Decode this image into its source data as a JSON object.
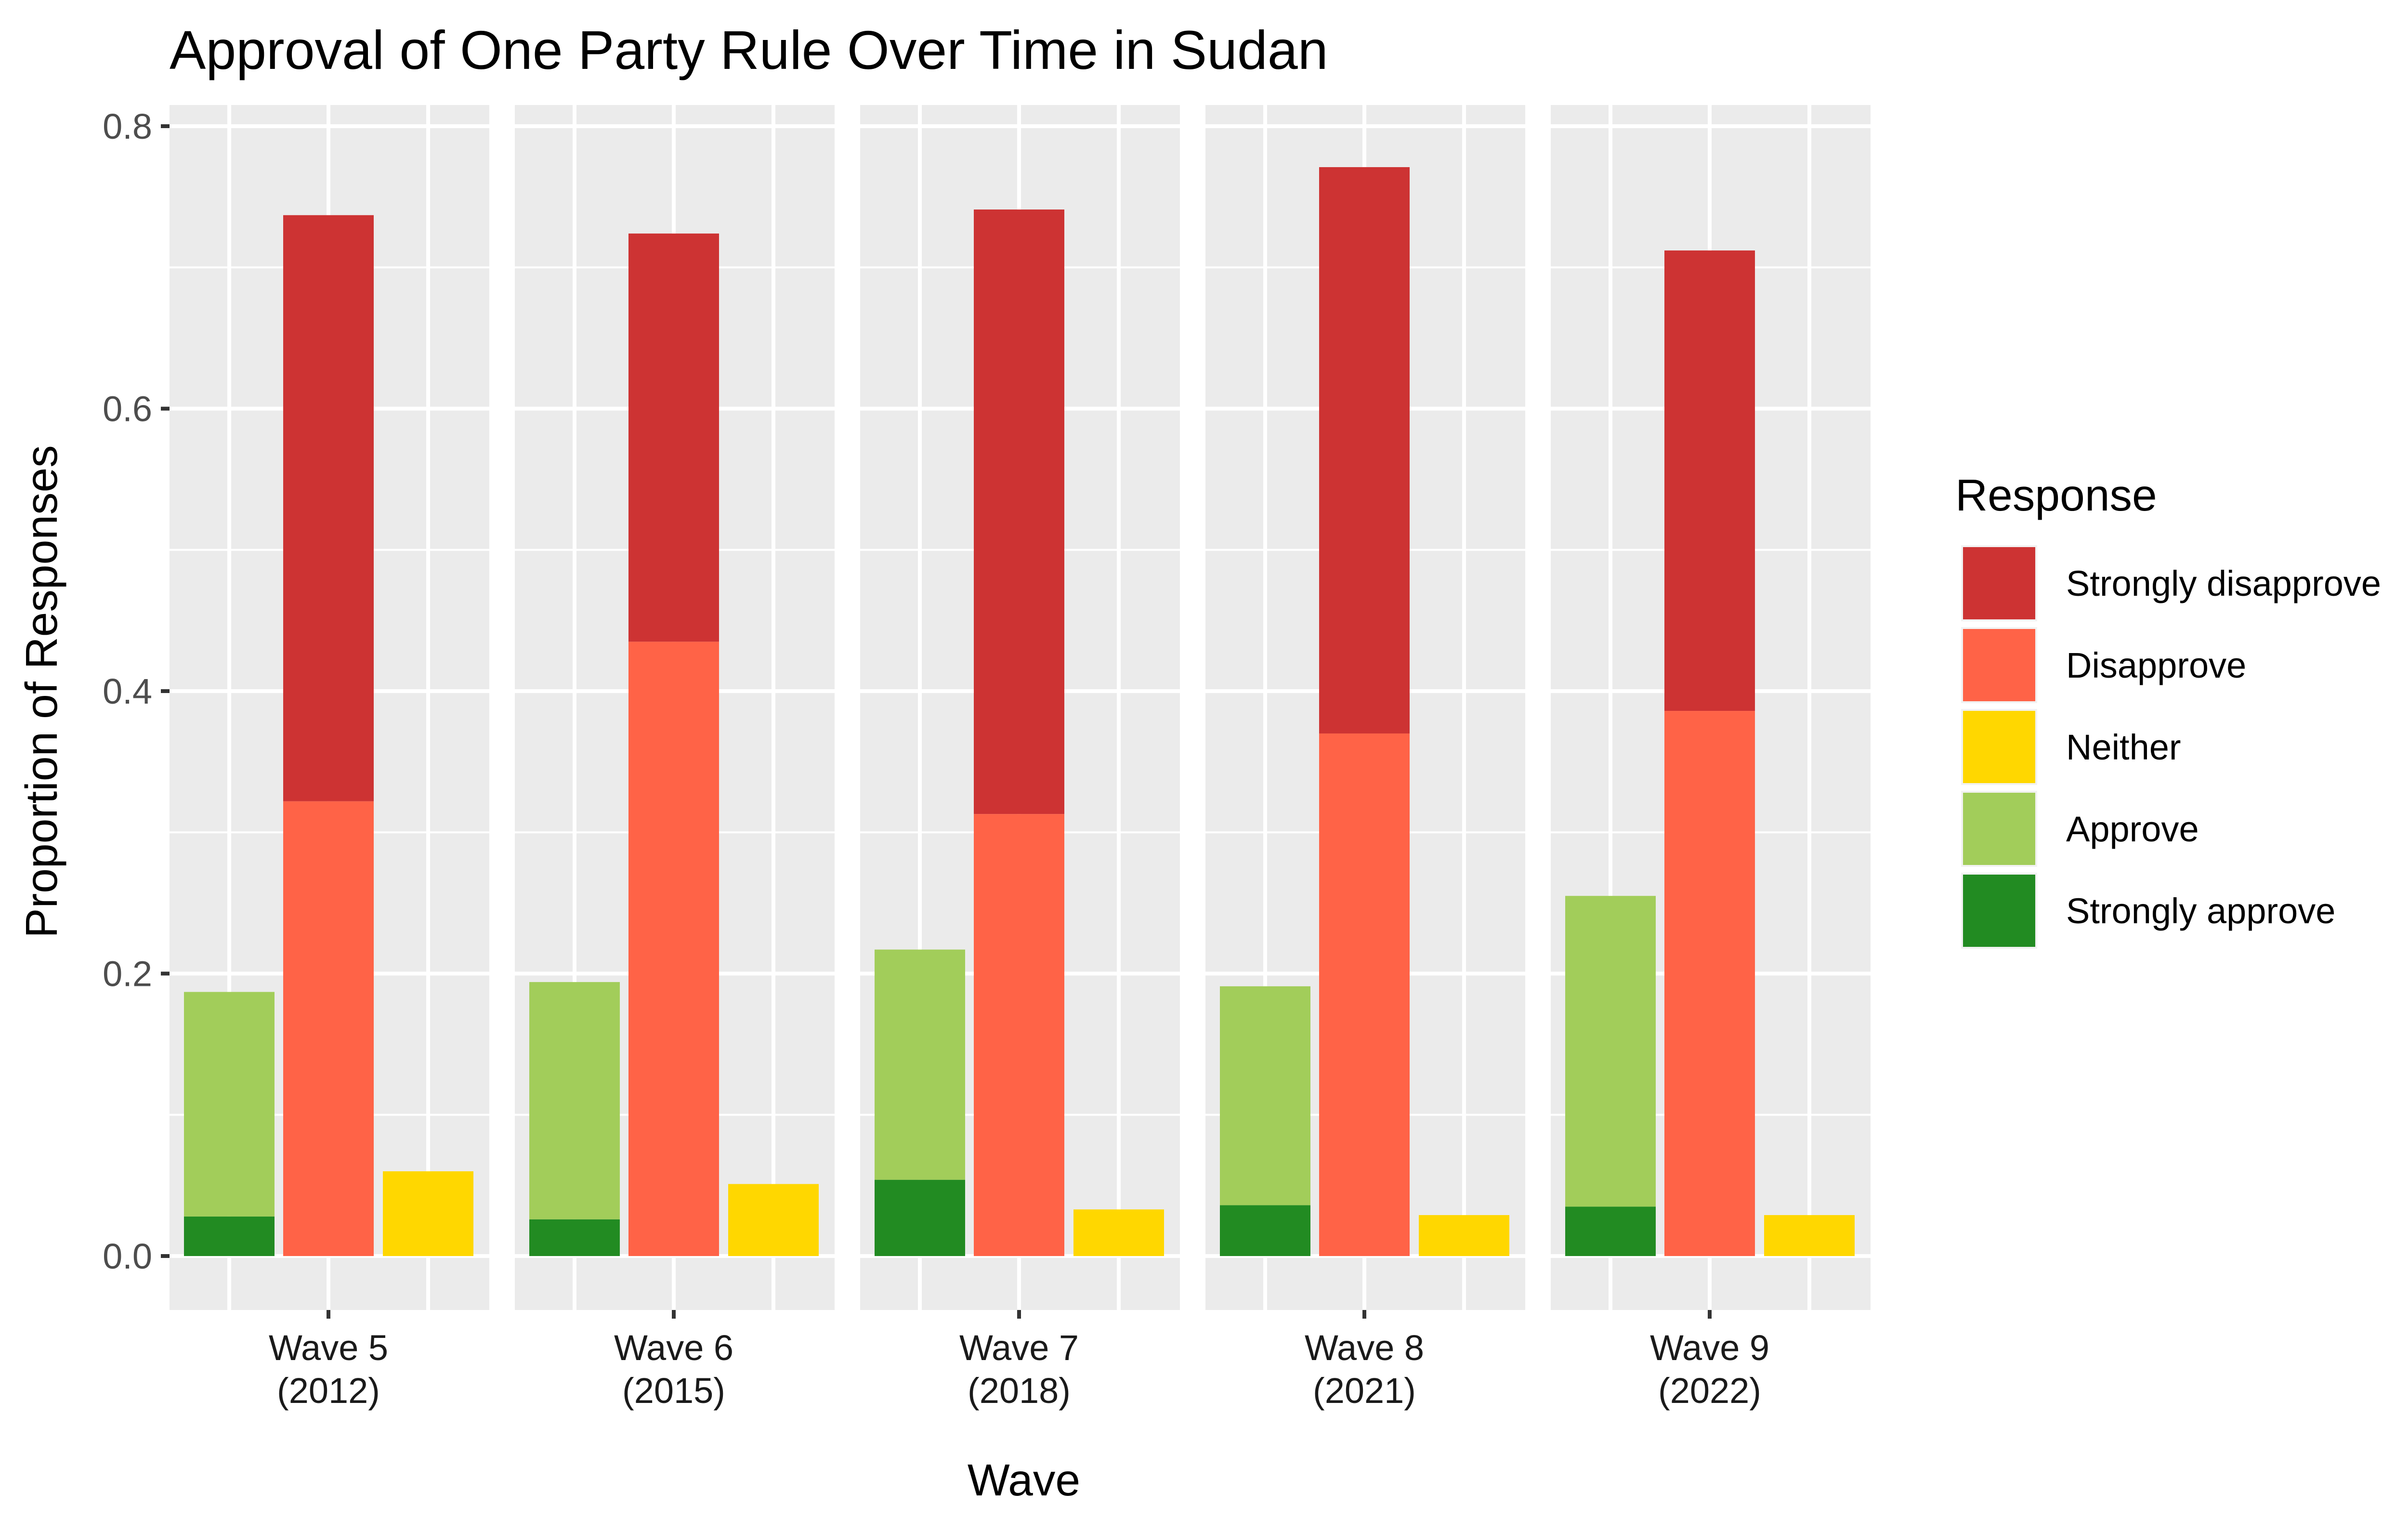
{
  "chart_data": {
    "type": "bar",
    "title": "Approval of One Party Rule Over Time in Sudan",
    "xlabel": "Wave",
    "ylabel": "Proportion of Responses",
    "ylim": [
      0,
      0.825
    ],
    "yticks": [
      0.0,
      0.2,
      0.4,
      0.6,
      0.8
    ],
    "ytick_labels": [
      "0.0",
      "0.2",
      "0.4",
      "0.6",
      "0.8"
    ],
    "grid": true,
    "legend": {
      "title": "Response",
      "position": "right",
      "entries": [
        {
          "label": "Strongly disapprove",
          "color": "#CD3333"
        },
        {
          "label": "Disapprove",
          "color": "#FF6347"
        },
        {
          "label": "Neither",
          "color": "#FFD700"
        },
        {
          "label": "Approve",
          "color": "#A2CD5A"
        },
        {
          "label": "Strongly approve",
          "color": "#228B22"
        }
      ]
    },
    "bar_groups": [
      "Approve",
      "Disapprove",
      "Neither"
    ],
    "stacking": "within-group",
    "facets": [
      {
        "label_line1": "Wave 5",
        "label_line2": "(2012)",
        "values": {
          "Strongly approve": 0.028,
          "Approve": 0.159,
          "Disapprove": 0.322,
          "Strongly disapprove": 0.415,
          "Neither": 0.06
        }
      },
      {
        "label_line1": "Wave 6",
        "label_line2": "(2015)",
        "values": {
          "Strongly approve": 0.026,
          "Approve": 0.168,
          "Disapprove": 0.435,
          "Strongly disapprove": 0.289,
          "Neither": 0.051
        }
      },
      {
        "label_line1": "Wave 7",
        "label_line2": "(2018)",
        "values": {
          "Strongly approve": 0.054,
          "Approve": 0.163,
          "Disapprove": 0.313,
          "Strongly disapprove": 0.428,
          "Neither": 0.033
        }
      },
      {
        "label_line1": "Wave 8",
        "label_line2": "(2021)",
        "values": {
          "Strongly approve": 0.036,
          "Approve": 0.155,
          "Disapprove": 0.37,
          "Strongly disapprove": 0.401,
          "Neither": 0.029
        }
      },
      {
        "label_line1": "Wave 9",
        "label_line2": "(2022)",
        "values": {
          "Strongly approve": 0.035,
          "Approve": 0.22,
          "Disapprove": 0.386,
          "Strongly disapprove": 0.326,
          "Neither": 0.029
        }
      }
    ]
  }
}
